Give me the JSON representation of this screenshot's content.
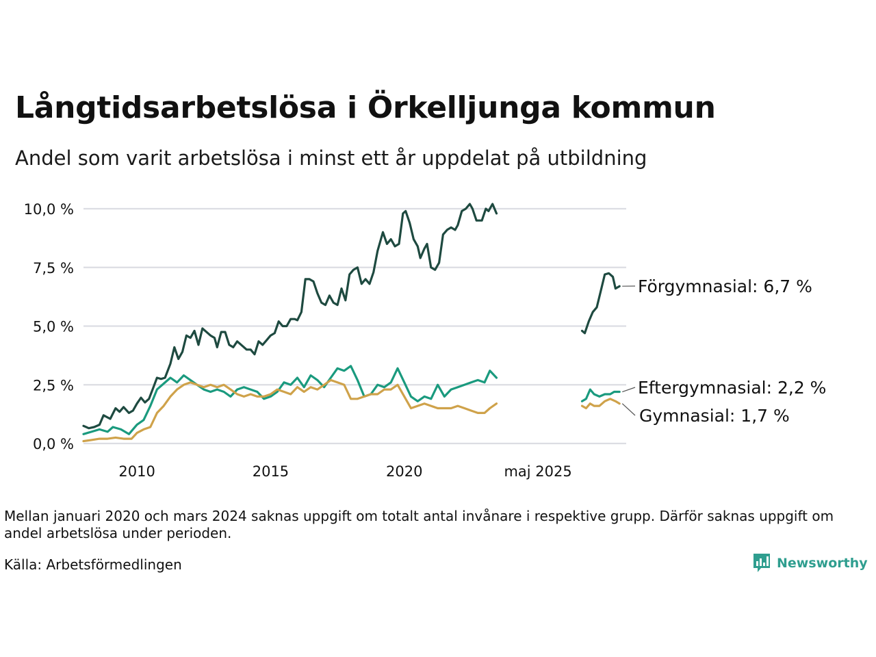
{
  "title": "Långtidsarbetslösa i Örkelljunga kommun",
  "subtitle": "Andel som varit arbetslösa i minst ett år uppdelat på utbildning",
  "note": "Mellan januari 2020 och mars 2024 saknas uppgift om totalt antal invånare i respektive grupp. Därför saknas uppgift om andel arbetslösa under perioden.",
  "source": "Källa: Arbetsförmedlingen",
  "brand": "Newsworthy",
  "colors": {
    "brand": "#2f9e8f"
  },
  "chart_data": {
    "type": "line",
    "title": "Långtidsarbetslösa i Örkelljunga kommun",
    "subtitle": "Andel som varit arbetslösa i minst ett år uppdelat på utbildning",
    "xlabel": "",
    "ylabel": "",
    "ylim": [
      0,
      10
    ],
    "yticks": [
      0,
      2.5,
      5,
      7.5,
      10
    ],
    "ytick_labels": [
      "0,0 %",
      "2,5 %",
      "5,0 %",
      "7,5 %",
      "10,0 %"
    ],
    "xticks": [
      {
        "pos": 2010,
        "label": "2010"
      },
      {
        "pos": 2015,
        "label": "2015"
      },
      {
        "pos": 2020,
        "label": "2020"
      },
      {
        "pos": 2025,
        "label": "maj 2025"
      }
    ],
    "grid": true,
    "legend": "none",
    "series": [
      {
        "name": "Förgymnasial",
        "end_label": "Förgymnasial: 6,7 %",
        "color": "#1e4a40",
        "segments": [
          [
            [
              2008.0,
              0.75
            ],
            [
              2008.2,
              0.65
            ],
            [
              2008.4,
              0.7
            ],
            [
              2008.6,
              0.8
            ],
            [
              2008.75,
              1.2
            ],
            [
              2009.0,
              1.05
            ],
            [
              2009.2,
              1.5
            ],
            [
              2009.35,
              1.35
            ],
            [
              2009.5,
              1.55
            ],
            [
              2009.7,
              1.3
            ],
            [
              2009.85,
              1.4
            ],
            [
              2010.0,
              1.7
            ],
            [
              2010.15,
              1.95
            ],
            [
              2010.3,
              1.75
            ],
            [
              2010.45,
              1.9
            ],
            [
              2010.6,
              2.35
            ],
            [
              2010.75,
              2.8
            ],
            [
              2010.9,
              2.75
            ],
            [
              2011.05,
              2.8
            ],
            [
              2011.25,
              3.4
            ],
            [
              2011.4,
              4.1
            ],
            [
              2011.55,
              3.6
            ],
            [
              2011.7,
              3.9
            ],
            [
              2011.85,
              4.6
            ],
            [
              2012.0,
              4.5
            ],
            [
              2012.15,
              4.8
            ],
            [
              2012.3,
              4.2
            ],
            [
              2012.45,
              4.9
            ],
            [
              2012.6,
              4.75
            ],
            [
              2012.75,
              4.6
            ],
            [
              2012.9,
              4.5
            ],
            [
              2013.0,
              4.1
            ],
            [
              2013.15,
              4.75
            ],
            [
              2013.3,
              4.75
            ],
            [
              2013.45,
              4.2
            ],
            [
              2013.6,
              4.1
            ],
            [
              2013.75,
              4.35
            ],
            [
              2013.9,
              4.2
            ],
            [
              2014.1,
              4.0
            ],
            [
              2014.25,
              4.0
            ],
            [
              2014.4,
              3.8
            ],
            [
              2014.55,
              4.35
            ],
            [
              2014.7,
              4.2
            ],
            [
              2014.85,
              4.4
            ],
            [
              2015.0,
              4.6
            ],
            [
              2015.15,
              4.7
            ],
            [
              2015.3,
              5.2
            ],
            [
              2015.45,
              5.0
            ],
            [
              2015.6,
              5.0
            ],
            [
              2015.75,
              5.3
            ],
            [
              2015.9,
              5.3
            ],
            [
              2016.0,
              5.25
            ],
            [
              2016.15,
              5.6
            ],
            [
              2016.3,
              7.0
            ],
            [
              2016.45,
              7.0
            ],
            [
              2016.6,
              6.9
            ],
            [
              2016.75,
              6.4
            ],
            [
              2016.9,
              6.0
            ],
            [
              2017.05,
              5.9
            ],
            [
              2017.2,
              6.3
            ],
            [
              2017.35,
              6.0
            ],
            [
              2017.5,
              5.9
            ],
            [
              2017.65,
              6.6
            ],
            [
              2017.8,
              6.1
            ],
            [
              2017.95,
              7.2
            ],
            [
              2018.1,
              7.4
            ],
            [
              2018.25,
              7.5
            ],
            [
              2018.4,
              6.8
            ],
            [
              2018.55,
              7.0
            ],
            [
              2018.7,
              6.8
            ],
            [
              2018.85,
              7.3
            ],
            [
              2019.0,
              8.2
            ],
            [
              2019.2,
              9.0
            ],
            [
              2019.35,
              8.5
            ],
            [
              2019.5,
              8.7
            ],
            [
              2019.65,
              8.4
            ],
            [
              2019.8,
              8.5
            ],
            [
              2019.95,
              9.8
            ],
            [
              2020.05,
              9.9
            ],
            [
              2020.2,
              9.4
            ],
            [
              2020.35,
              8.7
            ],
            [
              2020.5,
              8.4
            ],
            [
              2020.6,
              7.9
            ],
            [
              2020.75,
              8.3
            ],
            [
              2020.85,
              8.5
            ],
            [
              2021.0,
              7.5
            ],
            [
              2021.15,
              7.4
            ],
            [
              2021.3,
              7.7
            ],
            [
              2021.45,
              8.9
            ],
            [
              2021.6,
              9.1
            ],
            [
              2021.75,
              9.2
            ],
            [
              2021.9,
              9.1
            ],
            [
              2022.0,
              9.3
            ],
            [
              2022.15,
              9.9
            ],
            [
              2022.3,
              10.0
            ],
            [
              2022.45,
              10.2
            ],
            [
              2022.55,
              10.0
            ],
            [
              2022.7,
              9.5
            ],
            [
              2022.9,
              9.5
            ],
            [
              2023.05,
              10.0
            ],
            [
              2023.15,
              9.9
            ],
            [
              2023.3,
              10.2
            ],
            [
              2023.45,
              9.8
            ]
          ],
          [
            [
              2026.65,
              4.8
            ],
            [
              2026.75,
              4.7
            ],
            [
              2026.9,
              5.2
            ],
            [
              2027.05,
              5.6
            ],
            [
              2027.2,
              5.8
            ],
            [
              2027.35,
              6.5
            ],
            [
              2027.5,
              7.2
            ],
            [
              2027.65,
              7.25
            ],
            [
              2027.8,
              7.1
            ],
            [
              2027.9,
              6.6
            ],
            [
              2028.05,
              6.7
            ]
          ]
        ]
      },
      {
        "name": "Eftergymnasial",
        "end_label": "Eftergymnasial: 2,2 %",
        "color": "#1a9a7e",
        "segments": [
          [
            [
              2008.0,
              0.4
            ],
            [
              2008.3,
              0.5
            ],
            [
              2008.6,
              0.6
            ],
            [
              2008.9,
              0.5
            ],
            [
              2009.1,
              0.7
            ],
            [
              2009.4,
              0.6
            ],
            [
              2009.7,
              0.4
            ],
            [
              2010.0,
              0.8
            ],
            [
              2010.25,
              1.0
            ],
            [
              2010.5,
              1.6
            ],
            [
              2010.75,
              2.3
            ],
            [
              2011.0,
              2.55
            ],
            [
              2011.25,
              2.8
            ],
            [
              2011.5,
              2.6
            ],
            [
              2011.75,
              2.9
            ],
            [
              2012.0,
              2.7
            ],
            [
              2012.25,
              2.5
            ],
            [
              2012.5,
              2.3
            ],
            [
              2012.75,
              2.2
            ],
            [
              2013.0,
              2.3
            ],
            [
              2013.25,
              2.2
            ],
            [
              2013.5,
              2.0
            ],
            [
              2013.75,
              2.3
            ],
            [
              2014.0,
              2.4
            ],
            [
              2014.25,
              2.3
            ],
            [
              2014.5,
              2.2
            ],
            [
              2014.75,
              1.9
            ],
            [
              2015.0,
              2.0
            ],
            [
              2015.25,
              2.2
            ],
            [
              2015.5,
              2.6
            ],
            [
              2015.75,
              2.5
            ],
            [
              2016.0,
              2.8
            ],
            [
              2016.25,
              2.4
            ],
            [
              2016.5,
              2.9
            ],
            [
              2016.75,
              2.7
            ],
            [
              2017.0,
              2.4
            ],
            [
              2017.25,
              2.8
            ],
            [
              2017.5,
              3.2
            ],
            [
              2017.75,
              3.1
            ],
            [
              2018.0,
              3.3
            ],
            [
              2018.25,
              2.7
            ],
            [
              2018.5,
              2.0
            ],
            [
              2018.75,
              2.1
            ],
            [
              2019.0,
              2.5
            ],
            [
              2019.25,
              2.4
            ],
            [
              2019.5,
              2.6
            ],
            [
              2019.75,
              3.2
            ],
            [
              2020.0,
              2.6
            ],
            [
              2020.25,
              2.0
            ],
            [
              2020.5,
              1.8
            ],
            [
              2020.75,
              2.0
            ],
            [
              2021.0,
              1.9
            ],
            [
              2021.25,
              2.5
            ],
            [
              2021.5,
              2.0
            ],
            [
              2021.75,
              2.3
            ],
            [
              2022.0,
              2.4
            ],
            [
              2022.25,
              2.5
            ],
            [
              2022.5,
              2.6
            ],
            [
              2022.75,
              2.7
            ],
            [
              2023.0,
              2.6
            ],
            [
              2023.2,
              3.1
            ],
            [
              2023.45,
              2.8
            ]
          ],
          [
            [
              2026.65,
              1.8
            ],
            [
              2026.8,
              1.9
            ],
            [
              2026.95,
              2.3
            ],
            [
              2027.1,
              2.1
            ],
            [
              2027.3,
              2.0
            ],
            [
              2027.5,
              2.1
            ],
            [
              2027.7,
              2.1
            ],
            [
              2027.85,
              2.2
            ],
            [
              2028.05,
              2.2
            ]
          ]
        ]
      },
      {
        "name": "Gymnasial",
        "end_label": "Gymnasial: 1,7 %",
        "color": "#cfa24a",
        "segments": [
          [
            [
              2008.0,
              0.1
            ],
            [
              2008.3,
              0.15
            ],
            [
              2008.6,
              0.2
            ],
            [
              2008.9,
              0.2
            ],
            [
              2009.2,
              0.25
            ],
            [
              2009.5,
              0.2
            ],
            [
              2009.8,
              0.2
            ],
            [
              2010.0,
              0.45
            ],
            [
              2010.25,
              0.6
            ],
            [
              2010.5,
              0.7
            ],
            [
              2010.75,
              1.3
            ],
            [
              2011.0,
              1.6
            ],
            [
              2011.25,
              2.0
            ],
            [
              2011.5,
              2.3
            ],
            [
              2011.75,
              2.5
            ],
            [
              2012.0,
              2.6
            ],
            [
              2012.25,
              2.5
            ],
            [
              2012.5,
              2.4
            ],
            [
              2012.75,
              2.5
            ],
            [
              2013.0,
              2.4
            ],
            [
              2013.25,
              2.5
            ],
            [
              2013.5,
              2.3
            ],
            [
              2013.75,
              2.1
            ],
            [
              2014.0,
              2.0
            ],
            [
              2014.25,
              2.1
            ],
            [
              2014.5,
              2.0
            ],
            [
              2014.75,
              2.0
            ],
            [
              2015.0,
              2.1
            ],
            [
              2015.25,
              2.3
            ],
            [
              2015.5,
              2.2
            ],
            [
              2015.75,
              2.1
            ],
            [
              2016.0,
              2.4
            ],
            [
              2016.25,
              2.2
            ],
            [
              2016.5,
              2.4
            ],
            [
              2016.75,
              2.3
            ],
            [
              2017.0,
              2.5
            ],
            [
              2017.25,
              2.7
            ],
            [
              2017.5,
              2.6
            ],
            [
              2017.75,
              2.5
            ],
            [
              2018.0,
              1.9
            ],
            [
              2018.25,
              1.9
            ],
            [
              2018.5,
              2.0
            ],
            [
              2018.75,
              2.1
            ],
            [
              2019.0,
              2.1
            ],
            [
              2019.25,
              2.3
            ],
            [
              2019.5,
              2.3
            ],
            [
              2019.75,
              2.5
            ],
            [
              2020.0,
              2.0
            ],
            [
              2020.25,
              1.5
            ],
            [
              2020.5,
              1.6
            ],
            [
              2020.75,
              1.7
            ],
            [
              2021.0,
              1.6
            ],
            [
              2021.25,
              1.5
            ],
            [
              2021.5,
              1.5
            ],
            [
              2021.75,
              1.5
            ],
            [
              2022.0,
              1.6
            ],
            [
              2022.25,
              1.5
            ],
            [
              2022.5,
              1.4
            ],
            [
              2022.75,
              1.3
            ],
            [
              2023.0,
              1.3
            ],
            [
              2023.2,
              1.5
            ],
            [
              2023.45,
              1.7
            ]
          ],
          [
            [
              2026.65,
              1.6
            ],
            [
              2026.8,
              1.5
            ],
            [
              2026.95,
              1.7
            ],
            [
              2027.1,
              1.6
            ],
            [
              2027.3,
              1.6
            ],
            [
              2027.5,
              1.8
            ],
            [
              2027.7,
              1.9
            ],
            [
              2027.9,
              1.8
            ],
            [
              2028.05,
              1.7
            ]
          ]
        ]
      }
    ]
  }
}
